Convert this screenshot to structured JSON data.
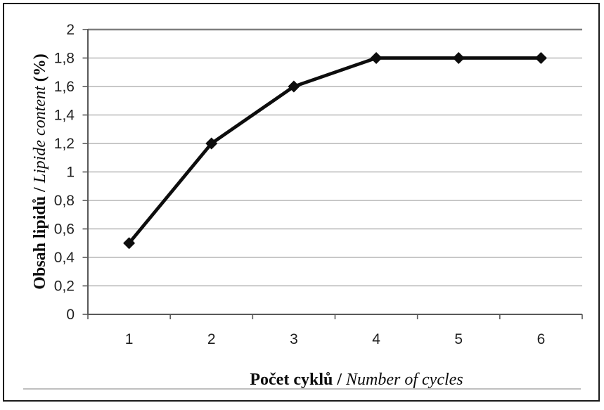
{
  "chart_data": {
    "type": "line",
    "title": "",
    "x": [
      1,
      2,
      3,
      4,
      5,
      6
    ],
    "xtick_labels": [
      "1",
      "2",
      "3",
      "4",
      "5",
      "6"
    ],
    "series": [
      {
        "name": "Obsah lipidů / Lipide content",
        "values": [
          0.5,
          1.2,
          1.6,
          1.8,
          1.8,
          1.8
        ],
        "marker": "diamond"
      }
    ],
    "xlabel": {
      "cz": "Počet cyklů",
      "sep": " / ",
      "en": "Number of cycles"
    },
    "ylabel": {
      "cz": "Obsah lipidů",
      "sep": " / ",
      "en": "Lipide content",
      "unit": "(%)"
    },
    "ylim": [
      0,
      2
    ],
    "ytick_step": 0.2,
    "yticks": [
      {
        "v": 0,
        "label": "0"
      },
      {
        "v": 0.2,
        "label": "0,2"
      },
      {
        "v": 0.4,
        "label": "0,4"
      },
      {
        "v": 0.6,
        "label": "0,6"
      },
      {
        "v": 0.8,
        "label": "0,8"
      },
      {
        "v": 1,
        "label": "1"
      },
      {
        "v": 1.2,
        "label": "1,2"
      },
      {
        "v": 1.4,
        "label": "1,4"
      },
      {
        "v": 1.6,
        "label": "1,6"
      },
      {
        "v": 1.8,
        "label": "1,8"
      },
      {
        "v": 2,
        "label": "2"
      }
    ],
    "grid": true,
    "legend": "none",
    "colors": {
      "line": "#0d0d0d",
      "marker": "#0d0d0d",
      "grid": "#a6a6a6",
      "grid_top": "#7f7f7f",
      "axis": "#595959",
      "tick_text": "#1f1f1f",
      "frame_border": "#1a1a1a",
      "separator_line": "#bfbfbf"
    }
  }
}
